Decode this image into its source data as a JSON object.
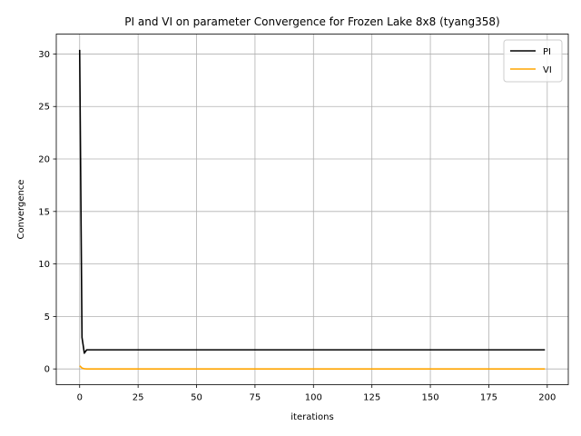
{
  "chart_data": {
    "type": "line",
    "title": "PI and VI on parameter Convergence for Frozen Lake 8x8 (tyang358)",
    "xlabel": "iterations",
    "ylabel": "Convergence",
    "xlim": [
      -10,
      209
    ],
    "ylim": [
      -1.5,
      31.9
    ],
    "xticks": [
      0,
      25,
      50,
      75,
      100,
      125,
      150,
      175,
      200
    ],
    "yticks": [
      0,
      5,
      10,
      15,
      20,
      25,
      30
    ],
    "grid": true,
    "legend_position": "top-right",
    "series": [
      {
        "name": "PI",
        "color": "#000000",
        "x_range": [
          0,
          199
        ],
        "head": [
          [
            0,
            30.4
          ],
          [
            1,
            3.0
          ],
          [
            2,
            1.5
          ],
          [
            3,
            1.82
          ]
        ],
        "tail_value": 1.82
      },
      {
        "name": "VI",
        "color": "#ffa500",
        "x_range": [
          0,
          199
        ],
        "head": [
          [
            0,
            0.3
          ],
          [
            1,
            0.08
          ],
          [
            2,
            0.02
          ]
        ],
        "tail_value": 0.0
      }
    ]
  }
}
